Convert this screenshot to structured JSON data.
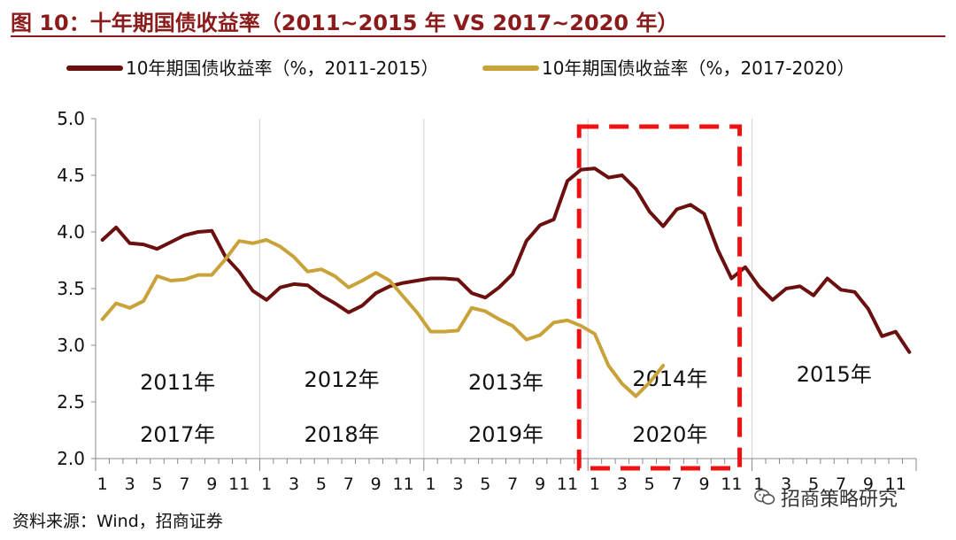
{
  "title": "图 10：十年期国债收益率（2011~2015 年 VS 2017~2020 年）",
  "source": "资料来源：Wind，招商证券",
  "watermark": "招商策略研究",
  "watermark_icon": "wechat-icon",
  "colors": {
    "series1": "#6b0f0f",
    "series2": "#c9a33a",
    "highlight": "#ee1111",
    "title": "#8b1a1a"
  },
  "chart_data": {
    "type": "line",
    "ylim": [
      2.0,
      5.0
    ],
    "yticks": [
      "5.0",
      "4.5",
      "4.0",
      "3.5",
      "3.0",
      "2.5",
      "2.0"
    ],
    "month_labels": [
      "1",
      "3",
      "5",
      "7",
      "9",
      "11",
      "1",
      "3",
      "5",
      "7",
      "9",
      "11",
      "1",
      "3",
      "5",
      "7",
      "9",
      "11",
      "1",
      "3",
      "5",
      "7",
      "9",
      "11",
      "1",
      "3",
      "5",
      "7",
      "9",
      "11"
    ],
    "month_count": 60,
    "grid": "vertical year separators",
    "legend_position": "top",
    "year_labels_top": [
      "2011年",
      "2012年",
      "2013年",
      "2014年",
      "2015年"
    ],
    "year_labels_bottom": [
      "2017年",
      "2018年",
      "2019年",
      "2020年"
    ],
    "series": [
      {
        "name": "10年期国债收益率（%，2011-2015）",
        "values": [
          3.93,
          4.04,
          3.9,
          3.89,
          3.85,
          3.91,
          3.97,
          4.0,
          4.01,
          3.78,
          3.65,
          3.48,
          3.4,
          3.51,
          3.54,
          3.53,
          3.44,
          3.37,
          3.29,
          3.35,
          3.46,
          3.52,
          3.55,
          3.57,
          3.59,
          3.59,
          3.58,
          3.46,
          3.42,
          3.51,
          3.63,
          3.92,
          4.06,
          4.11,
          4.45,
          4.55,
          4.56,
          4.48,
          4.5,
          4.38,
          4.18,
          4.05,
          4.2,
          4.24,
          4.16,
          3.84,
          3.59,
          3.69,
          3.52,
          3.4,
          3.5,
          3.52,
          3.44,
          3.59,
          3.49,
          3.47,
          3.32,
          3.08,
          3.12,
          2.94
        ]
      },
      {
        "name": "10年期国债收益率（%，2017-2020）",
        "values": [
          3.23,
          3.37,
          3.33,
          3.39,
          3.61,
          3.57,
          3.58,
          3.62,
          3.62,
          3.76,
          3.92,
          3.9,
          3.93,
          3.87,
          3.78,
          3.65,
          3.67,
          3.61,
          3.51,
          3.57,
          3.64,
          3.57,
          3.43,
          3.29,
          3.12,
          3.12,
          3.13,
          3.33,
          3.3,
          3.23,
          3.17,
          3.05,
          3.09,
          3.2,
          3.22,
          3.17,
          3.1,
          2.82,
          2.66,
          2.55,
          2.67,
          2.82
        ]
      }
    ],
    "highlight_box": {
      "from_month": 37,
      "to_month": 48
    }
  }
}
